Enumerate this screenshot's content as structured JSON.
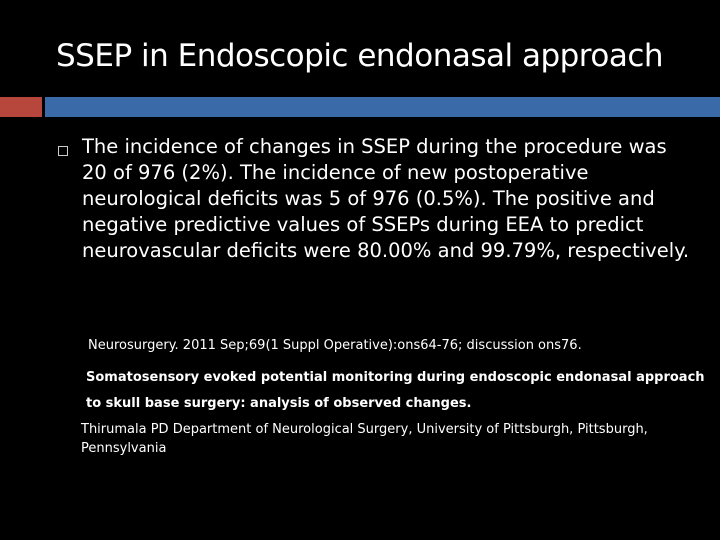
{
  "header": {
    "title": "SSEP in Endoscopic endonasal approach"
  },
  "bullet": "The incidence of changes in SSEP during the procedure was 20 of 976 (2%). The incidence of new postoperative neurological deficits was 5 of 976 (0.5%). The positive and negative predictive values of SSEPs during EEA to predict neurovascular deficits were 80.00% and 99.79%, respectively.",
  "reference": {
    "journal": "Neurosurgery. 2011 Sep;69(1 Suppl Operative):ons64-76; discussion ons76.",
    "title": "Somatosensory evoked potential monitoring during endoscopic endonasal approach to skull base surgery: analysis of observed changes.",
    "authors": "Thirumala PD Department of Neurological Surgery, University of Pittsburgh, Pittsburgh, Pennsylvania"
  }
}
